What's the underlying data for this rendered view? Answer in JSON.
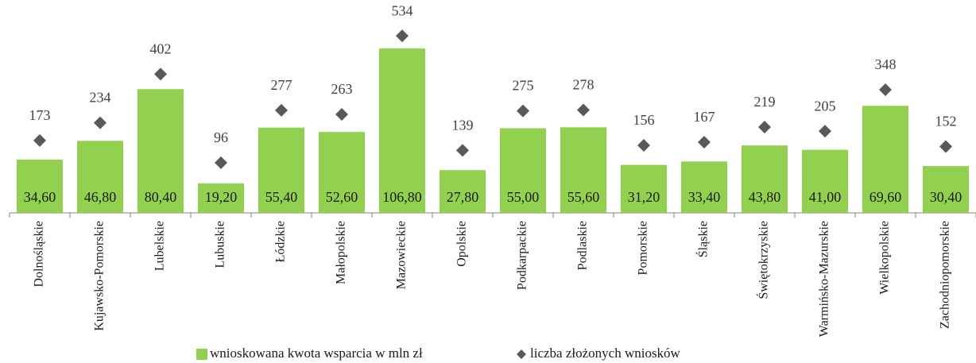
{
  "chart_data": {
    "type": "bar",
    "categories": [
      "Dolnośląskie",
      "Kujawsko-Pomorskie",
      "Lubelskie",
      "Lubuskie",
      "Łódzkie",
      "Małopolskie",
      "Mazowieckie",
      "Opolskie",
      "Podkarpackie",
      "Podlaskie",
      "Pomorskie",
      "Śląskie",
      "Świętokrzyskie",
      "Warmińsko-Mazurskie",
      "Wielkopolskie",
      "Zachodniopomorskie"
    ],
    "series": [
      {
        "name": "wnioskowana kwota wsparcia w mln zł",
        "color": "#92d050",
        "values": [
          34.6,
          46.8,
          80.4,
          19.2,
          55.4,
          52.6,
          106.8,
          27.8,
          55.0,
          55.6,
          31.2,
          33.4,
          43.8,
          41.0,
          69.6,
          30.4
        ],
        "value_labels": [
          "34,60",
          "46,80",
          "80,40",
          "19,20",
          "55,40",
          "52,60",
          "106,80",
          "27,80",
          "55,00",
          "55,60",
          "31,20",
          "33,40",
          "43,80",
          "41,00",
          "69,60",
          "30,40"
        ]
      },
      {
        "name": "liczba złożonych wniosków",
        "color": "#595959",
        "marker": "diamond",
        "axis": "y2",
        "values": [
          173,
          234,
          402,
          96,
          277,
          263,
          534,
          139,
          275,
          278,
          156,
          167,
          219,
          205,
          348,
          152
        ]
      }
    ],
    "ylim": [
      0,
      128
    ],
    "y2lim": [
      -77,
      603
    ],
    "legend": "bottom"
  }
}
